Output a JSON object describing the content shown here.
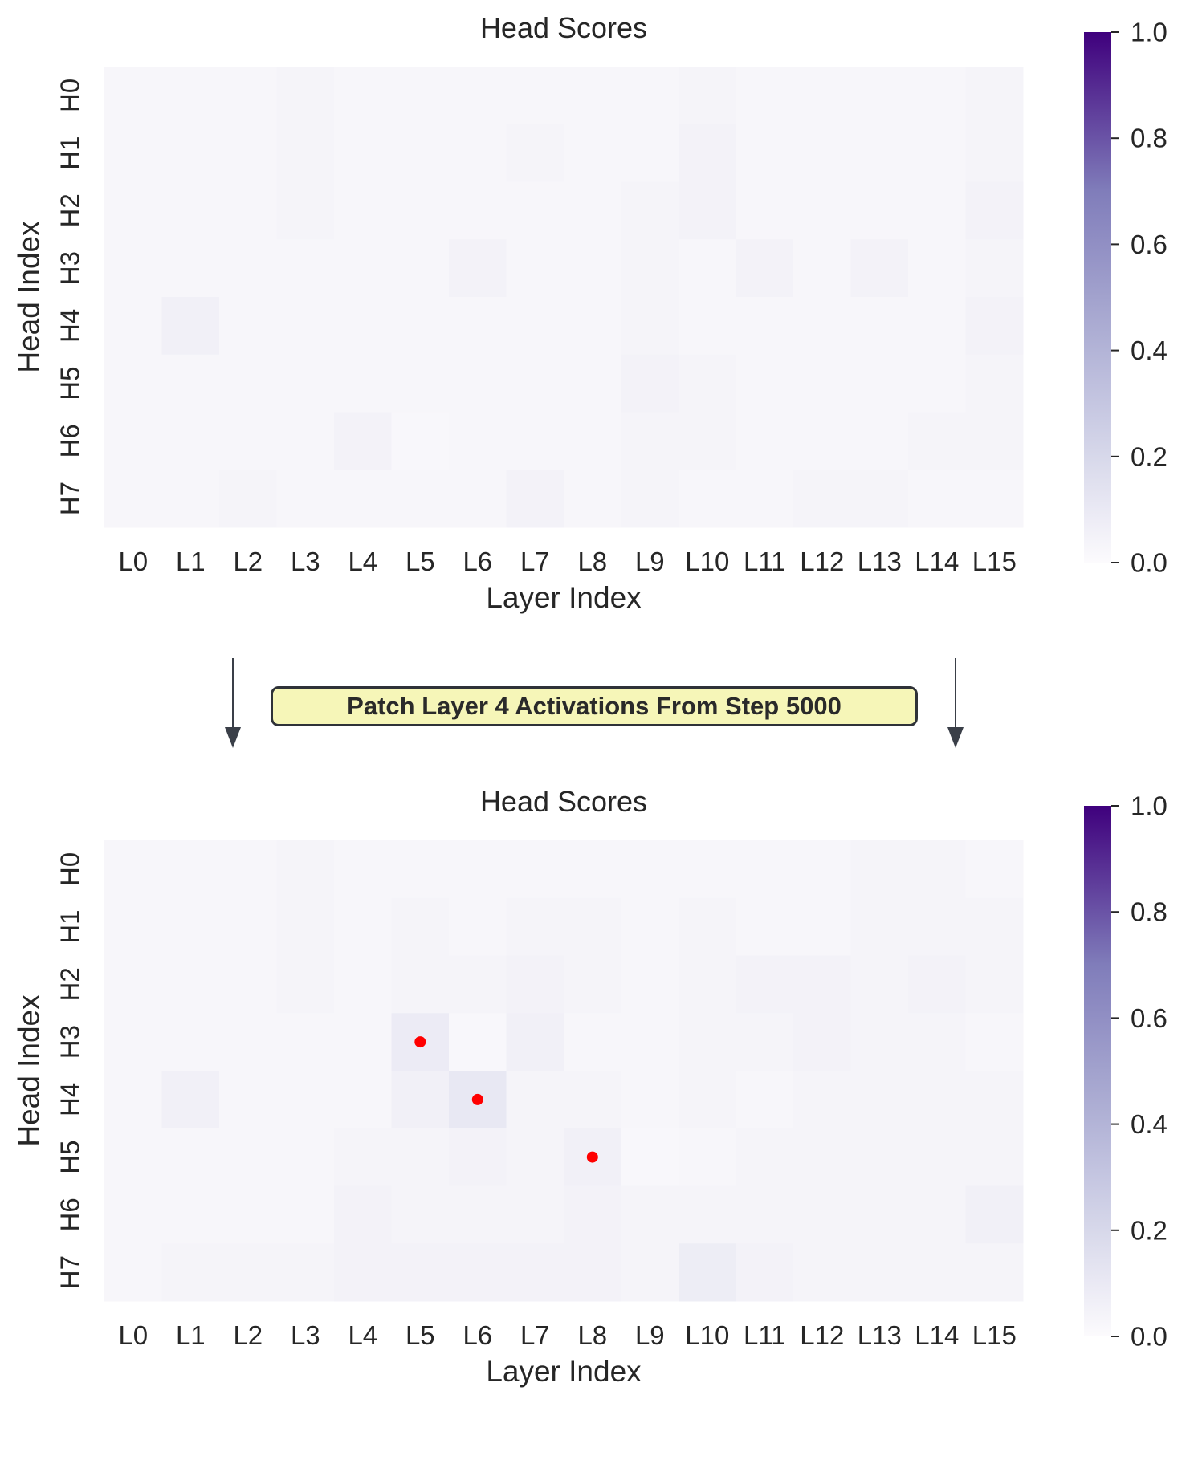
{
  "colors": {
    "cmap_low": "#fcfbfd",
    "cmap_mid": "#bcbddc",
    "cmap_mid2": "#807dba",
    "cmap_high": "#3f007d",
    "marker": "#ff0000",
    "patch_fill": "#f6f6b8",
    "arrow": "#3a3f48"
  },
  "flow": {
    "patch_label": "Patch Layer 4 Activations From Step 5000"
  },
  "chart_data": [
    {
      "type": "heatmap",
      "title": "Head Scores",
      "xlabel": "Layer Index",
      "ylabel": "Head Index",
      "x_categories": [
        "L0",
        "L1",
        "L2",
        "L3",
        "L4",
        "L5",
        "L6",
        "L7",
        "L8",
        "L9",
        "L10",
        "L11",
        "L12",
        "L13",
        "L14",
        "L15"
      ],
      "y_categories": [
        "H0",
        "H1",
        "H2",
        "H3",
        "H4",
        "H5",
        "H6",
        "H7"
      ],
      "values": [
        [
          0.03,
          0.03,
          0.03,
          0.04,
          0.03,
          0.03,
          0.03,
          0.03,
          0.03,
          0.03,
          0.04,
          0.03,
          0.03,
          0.03,
          0.03,
          0.04
        ],
        [
          0.03,
          0.03,
          0.03,
          0.04,
          0.03,
          0.03,
          0.03,
          0.04,
          0.03,
          0.03,
          0.05,
          0.03,
          0.03,
          0.03,
          0.03,
          0.04
        ],
        [
          0.03,
          0.03,
          0.03,
          0.04,
          0.03,
          0.03,
          0.03,
          0.03,
          0.03,
          0.04,
          0.05,
          0.03,
          0.03,
          0.03,
          0.03,
          0.05
        ],
        [
          0.03,
          0.03,
          0.03,
          0.03,
          0.03,
          0.03,
          0.05,
          0.03,
          0.03,
          0.04,
          0.03,
          0.05,
          0.03,
          0.05,
          0.03,
          0.04
        ],
        [
          0.03,
          0.06,
          0.03,
          0.03,
          0.03,
          0.03,
          0.03,
          0.03,
          0.03,
          0.04,
          0.03,
          0.03,
          0.03,
          0.03,
          0.03,
          0.05
        ],
        [
          0.03,
          0.03,
          0.03,
          0.03,
          0.03,
          0.03,
          0.03,
          0.03,
          0.03,
          0.05,
          0.04,
          0.03,
          0.03,
          0.03,
          0.03,
          0.04
        ],
        [
          0.03,
          0.03,
          0.03,
          0.03,
          0.05,
          0.02,
          0.03,
          0.03,
          0.03,
          0.04,
          0.04,
          0.03,
          0.03,
          0.03,
          0.04,
          0.04
        ],
        [
          0.03,
          0.03,
          0.04,
          0.03,
          0.03,
          0.03,
          0.03,
          0.05,
          0.03,
          0.04,
          0.03,
          0.03,
          0.04,
          0.04,
          0.03,
          0.03
        ]
      ],
      "colorbar": {
        "range": [
          0.0,
          1.0
        ],
        "ticks": [
          "0.0",
          "0.2",
          "0.4",
          "0.6",
          "0.8",
          "1.0"
        ]
      },
      "markers": []
    },
    {
      "type": "heatmap",
      "title": "Head Scores",
      "xlabel": "Layer Index",
      "ylabel": "Head Index",
      "x_categories": [
        "L0",
        "L1",
        "L2",
        "L3",
        "L4",
        "L5",
        "L6",
        "L7",
        "L8",
        "L9",
        "L10",
        "L11",
        "L12",
        "L13",
        "L14",
        "L15"
      ],
      "y_categories": [
        "H0",
        "H1",
        "H2",
        "H3",
        "H4",
        "H5",
        "H6",
        "H7"
      ],
      "values": [
        [
          0.03,
          0.03,
          0.03,
          0.04,
          0.03,
          0.03,
          0.03,
          0.03,
          0.03,
          0.03,
          0.03,
          0.03,
          0.03,
          0.04,
          0.04,
          0.03
        ],
        [
          0.03,
          0.03,
          0.03,
          0.04,
          0.03,
          0.04,
          0.03,
          0.04,
          0.04,
          0.03,
          0.04,
          0.03,
          0.03,
          0.04,
          0.04,
          0.04
        ],
        [
          0.03,
          0.03,
          0.03,
          0.04,
          0.03,
          0.04,
          0.04,
          0.05,
          0.04,
          0.03,
          0.04,
          0.05,
          0.05,
          0.04,
          0.05,
          0.04
        ],
        [
          0.03,
          0.03,
          0.03,
          0.03,
          0.03,
          0.09,
          0.02,
          0.06,
          0.03,
          0.03,
          0.04,
          0.04,
          0.05,
          0.04,
          0.04,
          0.03
        ],
        [
          0.03,
          0.06,
          0.03,
          0.03,
          0.03,
          0.06,
          0.11,
          0.04,
          0.04,
          0.03,
          0.04,
          0.03,
          0.04,
          0.04,
          0.04,
          0.04
        ],
        [
          0.03,
          0.03,
          0.03,
          0.03,
          0.04,
          0.04,
          0.05,
          0.04,
          0.06,
          0.02,
          0.03,
          0.04,
          0.04,
          0.04,
          0.04,
          0.04
        ],
        [
          0.03,
          0.03,
          0.03,
          0.03,
          0.05,
          0.04,
          0.04,
          0.04,
          0.05,
          0.04,
          0.04,
          0.04,
          0.04,
          0.04,
          0.04,
          0.06
        ],
        [
          0.03,
          0.04,
          0.04,
          0.04,
          0.05,
          0.05,
          0.05,
          0.05,
          0.05,
          0.04,
          0.08,
          0.05,
          0.04,
          0.04,
          0.04,
          0.04
        ]
      ],
      "colorbar": {
        "range": [
          0.0,
          1.0
        ],
        "ticks": [
          "0.0",
          "0.2",
          "0.4",
          "0.6",
          "0.8",
          "1.0"
        ]
      },
      "markers": [
        {
          "layer": "L5",
          "head": "H3"
        },
        {
          "layer": "L6",
          "head": "H4"
        },
        {
          "layer": "L8",
          "head": "H5"
        }
      ]
    }
  ]
}
